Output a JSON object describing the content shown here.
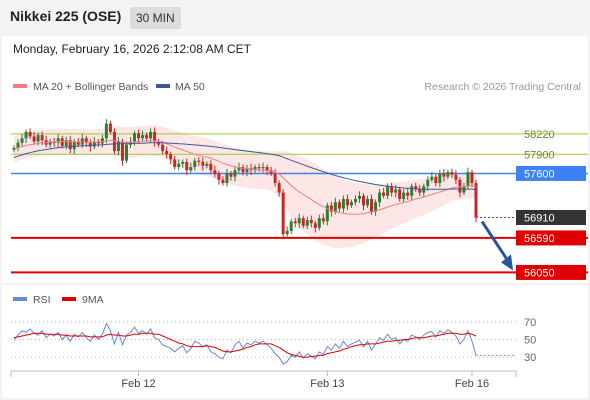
{
  "header": {
    "title": "Nikkei 225 (OSE)",
    "interval": "30 MIN",
    "datetime": "Monday, February 16, 2026 2:12:08 AM CET"
  },
  "legend": {
    "ma20": "MA 20 + Bollinger Bands",
    "ma50": "MA 50",
    "credit": "Research © 2026 Trading Central",
    "rsi": "RSI",
    "ma9": "9MA"
  },
  "colors": {
    "ma20": "#f08080",
    "ma50": "#3b5998",
    "band_fill": "#fde2e2",
    "candle_up": "#2e7d32",
    "candle_down": "#c62828",
    "line_green": "#9acd32",
    "line_blue": "#3b82f6",
    "line_red": "#e00000",
    "current": "#333333",
    "arrow": "#2a5599",
    "rsi": "#6688dd",
    "rsi_ma": "#e00000"
  },
  "chart_data": {
    "type": "line",
    "title": "Nikkei 225 (OSE)",
    "xticks": [
      "Feb 12",
      "Feb 13",
      "Feb 16"
    ],
    "levels": [
      {
        "label": "58220",
        "value": 58220,
        "style": "green"
      },
      {
        "label": "57900",
        "value": 57900,
        "style": "green"
      },
      {
        "label": "57600",
        "value": 57600,
        "style": "blue"
      },
      {
        "label": "56910",
        "value": 56910,
        "style": "current"
      },
      {
        "label": "56590",
        "value": 56590,
        "style": "red"
      },
      {
        "label": "56050",
        "value": 56050,
        "style": "red"
      }
    ],
    "price_ylim": [
      55900,
      58750
    ],
    "price_close": [
      58000,
      58080,
      58150,
      58250,
      58180,
      58100,
      58200,
      58120,
      58050,
      58100,
      58080,
      58150,
      58030,
      58120,
      57980,
      58100,
      58050,
      58150,
      58080,
      58020,
      58100,
      58070,
      58150,
      58380,
      58250,
      57950,
      58100,
      57800,
      58050,
      58100,
      58230,
      58150,
      58200,
      58150,
      58250,
      58100,
      58050,
      57950,
      57900,
      57820,
      57700,
      57750,
      57780,
      57650,
      57700,
      57800,
      57780,
      57720,
      57750,
      57650,
      57600,
      57500,
      57450,
      57600,
      57550,
      57650,
      57700,
      57620,
      57680,
      57650,
      57700,
      57680,
      57700,
      57650,
      57600,
      57450,
      57300,
      56650,
      56700,
      56850,
      56820,
      56900,
      56780,
      56870,
      56820,
      56750,
      56900,
      56850,
      57100,
      57000,
      57150,
      57050,
      57200,
      57100,
      57150,
      57200,
      57250,
      57100,
      57200,
      57000,
      57150,
      57300,
      57250,
      57400,
      57300,
      57350,
      57200,
      57300,
      57250,
      57400,
      57350,
      57300,
      57400,
      57500,
      57550,
      57450,
      57600,
      57550,
      57620,
      57580,
      57500,
      57300,
      57400,
      57620,
      57450,
      56910
    ],
    "ma20": [
      57980,
      58000,
      58020,
      58040,
      58050,
      58060,
      58070,
      58080,
      58085,
      58090,
      58095,
      58100,
      58100,
      58098,
      58095,
      58095,
      58092,
      58092,
      58090,
      58090,
      58090,
      58092,
      58095,
      58110,
      58120,
      58110,
      58108,
      58090,
      58082,
      58085,
      58095,
      58100,
      58105,
      58108,
      58115,
      58110,
      58100,
      58085,
      58065,
      58040,
      58010,
      57990,
      57970,
      57945,
      57920,
      57900,
      57885,
      57870,
      57855,
      57835,
      57815,
      57790,
      57760,
      57740,
      57720,
      57705,
      57690,
      57680,
      57672,
      57665,
      57660,
      57655,
      57650,
      57645,
      57635,
      57615,
      57590,
      57530,
      57470,
      57410,
      57360,
      57310,
      57270,
      57230,
      57190,
      57150,
      57110,
      57080,
      57050,
      57020,
      57000,
      56985,
      56975,
      56965,
      56960,
      56960,
      56965,
      56970,
      56985,
      56995,
      57010,
      57030,
      57050,
      57075,
      57095,
      57115,
      57130,
      57145,
      57160,
      57180,
      57200,
      57215,
      57230,
      57250,
      57270,
      57290,
      57310,
      57330,
      57350,
      57370,
      57385,
      57390,
      57395,
      57405,
      57410,
      57390
    ],
    "ma50": [
      57850,
      57870,
      57890,
      57910,
      57925,
      57940,
      57955,
      57965,
      57975,
      57985,
      57995,
      58005,
      58010,
      58015,
      58020,
      58025,
      58030,
      58033,
      58036,
      58039,
      58042,
      58045,
      58048,
      58055,
      58060,
      58062,
      58064,
      58064,
      58065,
      58067,
      58070,
      58072,
      58074,
      58076,
      58079,
      58080,
      58080,
      58079,
      58077,
      58074,
      58070,
      58066,
      58062,
      58057,
      58052,
      58047,
      58042,
      58036,
      58030,
      58023,
      58016,
      58008,
      57999,
      57990,
      57982,
      57974,
      57966,
      57958,
      57950,
      57942,
      57934,
      57926,
      57918,
      57910,
      57901,
      57890,
      57878,
      57855,
      57830,
      57806,
      57783,
      57760,
      57737,
      57714,
      57692,
      57670,
      57648,
      57627,
      57607,
      57587,
      57568,
      57550,
      57533,
      57517,
      57502,
      57488,
      57475,
      57462,
      57450,
      57438,
      57427,
      57417,
      57408,
      57400,
      57392,
      57385,
      57378,
      57372,
      57367,
      57363,
      57360,
      57357,
      57355,
      57353,
      57352,
      57352,
      57352,
      57353,
      57354,
      57356,
      57357,
      57355,
      57354,
      57355,
      57355,
      57347
    ],
    "band_width": [
      200,
      200,
      200,
      200,
      200,
      200,
      200,
      200,
      200,
      200,
      200,
      200,
      200,
      200,
      200,
      200,
      200,
      200,
      200,
      200,
      200,
      200,
      200,
      210,
      220,
      230,
      230,
      240,
      240,
      240,
      240,
      240,
      240,
      240,
      240,
      240,
      240,
      245,
      250,
      255,
      260,
      265,
      270,
      275,
      280,
      285,
      290,
      295,
      300,
      300,
      300,
      300,
      300,
      300,
      300,
      300,
      300,
      300,
      300,
      300,
      300,
      300,
      300,
      300,
      310,
      330,
      360,
      420,
      470,
      510,
      540,
      560,
      575,
      585,
      590,
      595,
      595,
      590,
      585,
      575,
      565,
      555,
      540,
      525,
      510,
      495,
      480,
      465,
      450,
      435,
      420,
      405,
      390,
      375,
      360,
      350,
      340,
      330,
      320,
      310,
      300,
      290,
      280,
      270,
      260,
      250,
      240,
      230,
      220,
      210,
      200,
      200,
      200,
      200,
      200,
      200
    ],
    "rsi": [
      50,
      55,
      60,
      58,
      62,
      57,
      55,
      60,
      52,
      56,
      54,
      58,
      50,
      55,
      48,
      56,
      53,
      58,
      52,
      48,
      55,
      50,
      56,
      68,
      60,
      45,
      58,
      44,
      55,
      58,
      64,
      57,
      60,
      56,
      62,
      52,
      50,
      44,
      42,
      40,
      36,
      40,
      43,
      35,
      40,
      48,
      46,
      42,
      44,
      36,
      34,
      30,
      28,
      38,
      35,
      44,
      48,
      40,
      46,
      44,
      48,
      46,
      48,
      44,
      40,
      34,
      30,
      22,
      25,
      32,
      30,
      36,
      29,
      34,
      31,
      28,
      36,
      33,
      42,
      38,
      45,
      40,
      48,
      42,
      45,
      47,
      49,
      42,
      48,
      38,
      45,
      52,
      49,
      56,
      50,
      52,
      45,
      50,
      48,
      55,
      53,
      50,
      55,
      58,
      59,
      53,
      60,
      57,
      61,
      58,
      54,
      45,
      50,
      60,
      48,
      32
    ],
    "rsi_ma": [
      52,
      53,
      54,
      55,
      56,
      57,
      57,
      57,
      56,
      56,
      56,
      56,
      55,
      55,
      54,
      54,
      54,
      54,
      54,
      53,
      53,
      53,
      53,
      55,
      56,
      55,
      55,
      54,
      54,
      55,
      56,
      56,
      57,
      57,
      57,
      56,
      56,
      54,
      52,
      50,
      48,
      46,
      45,
      43,
      42,
      42,
      42,
      42,
      43,
      42,
      41,
      39,
      37,
      36,
      36,
      37,
      38,
      39,
      41,
      42,
      44,
      45,
      45,
      45,
      45,
      43,
      41,
      38,
      35,
      33,
      32,
      31,
      30,
      30,
      31,
      31,
      32,
      32,
      34,
      35,
      36,
      37,
      39,
      40,
      42,
      43,
      44,
      44,
      45,
      45,
      45,
      46,
      47,
      48,
      48,
      49,
      49,
      50,
      50,
      51,
      52,
      52,
      52,
      53,
      54,
      54,
      55,
      56,
      57,
      57,
      57,
      56,
      56,
      57,
      56,
      54
    ],
    "rsi_ylim": [
      20,
      80
    ],
    "rsi_levels": [
      70,
      50,
      30
    ],
    "xtick_index": [
      31,
      78,
      114
    ]
  }
}
